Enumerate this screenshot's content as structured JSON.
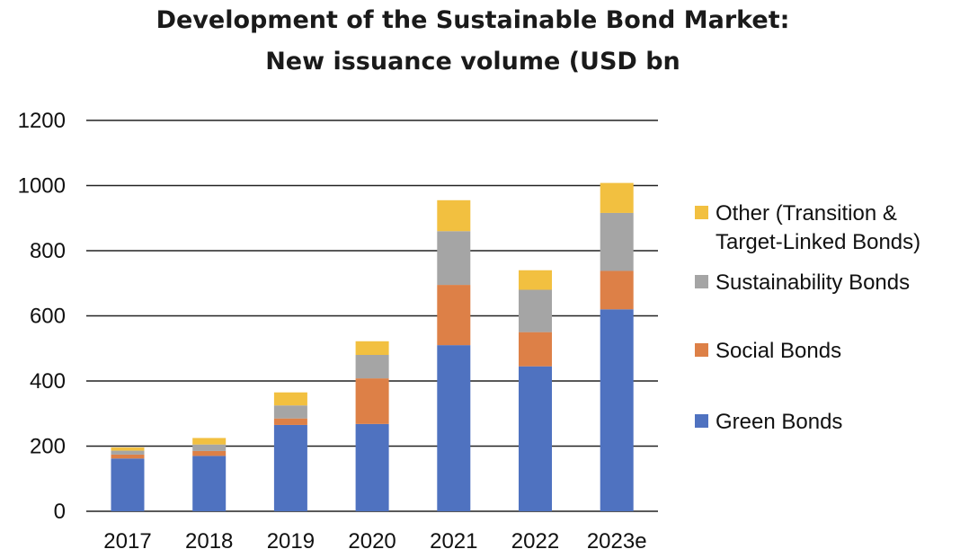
{
  "chart_data": {
    "type": "bar",
    "stacked": true,
    "title": "Development of the Sustainable Bond Market:",
    "subtitle": "New issuance volume (USD bn",
    "xlabel": "",
    "ylabel": "",
    "categories": [
      "2017",
      "2018",
      "2019",
      "2020",
      "2021",
      "2022",
      "2023e"
    ],
    "ylim": [
      0,
      1200
    ],
    "yticks": [
      0,
      200,
      400,
      600,
      800,
      1000,
      1200
    ],
    "grid": true,
    "legend_position": "right",
    "series": [
      {
        "name": "Green Bonds",
        "color": "#4F72C0",
        "values": [
          162,
          170,
          265,
          268,
          510,
          445,
          620
        ]
      },
      {
        "name": "Social Bonds",
        "color": "#DD8047",
        "values": [
          12,
          15,
          20,
          140,
          185,
          105,
          118
        ]
      },
      {
        "name": "Sustainability Bonds",
        "color": "#A5A5A5",
        "values": [
          12,
          20,
          40,
          72,
          165,
          130,
          178
        ]
      },
      {
        "name": "Other (Transition & Target-Linked Bonds)",
        "color": "#F2C040",
        "values": [
          10,
          20,
          40,
          42,
          95,
          60,
          92
        ]
      }
    ],
    "legend_lines": {
      "other": [
        "Other (Transition &",
        "Target-Linked Bonds)"
      ],
      "sustainability": "Sustainability Bonds",
      "social": "Social Bonds",
      "green": "Green Bonds"
    }
  }
}
